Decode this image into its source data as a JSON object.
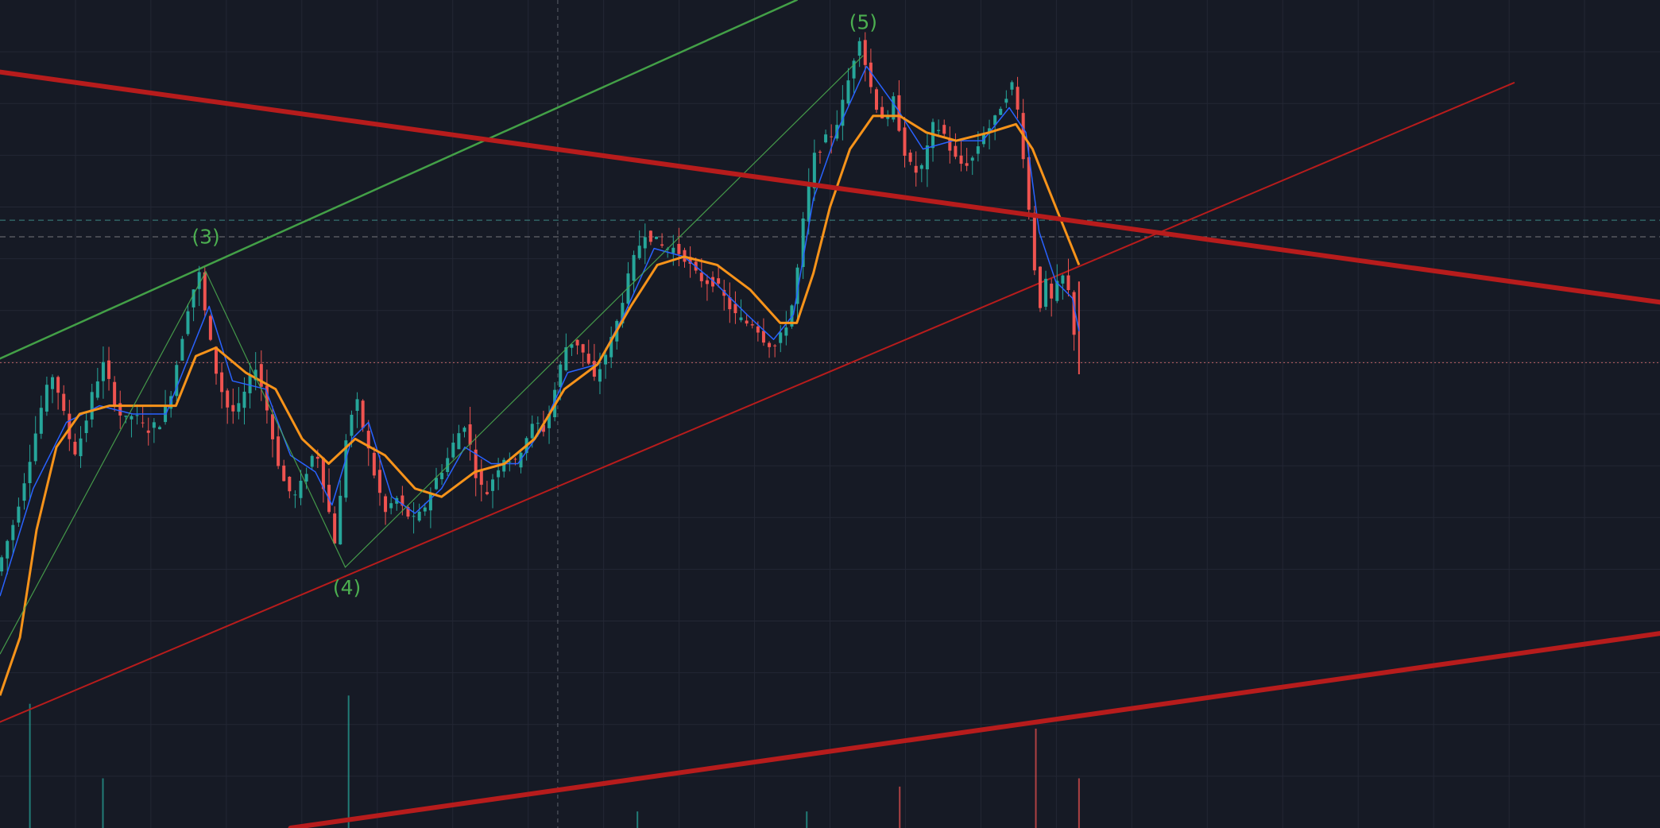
{
  "chart_data": {
    "type": "candlestick",
    "theme": {
      "background": "#161a25",
      "grid": "#232734",
      "up_color": "#26a69a",
      "down_color": "#ef5350",
      "ma_fast_color": "#2962ff",
      "ma_slow_color": "#f7931a",
      "wave_color": "#4caf50",
      "trendline_color": "#b71c1c",
      "upper_channel_color": "#43a047",
      "reference_line_teal": "#4db6ac",
      "reference_line_gray": "#9e9e9e",
      "reference_line_pink": "#e57373"
    },
    "x_range": [
      0,
      1
    ],
    "y_range": [
      0,
      1
    ],
    "price_path": [
      [
        0.0,
        0.31
      ],
      [
        0.01,
        0.37
      ],
      [
        0.02,
        0.45
      ],
      [
        0.028,
        0.52
      ],
      [
        0.034,
        0.55
      ],
      [
        0.04,
        0.5
      ],
      [
        0.046,
        0.45
      ],
      [
        0.052,
        0.48
      ],
      [
        0.058,
        0.53
      ],
      [
        0.064,
        0.56
      ],
      [
        0.07,
        0.52
      ],
      [
        0.076,
        0.49
      ],
      [
        0.082,
        0.5
      ],
      [
        0.09,
        0.48
      ],
      [
        0.098,
        0.49
      ],
      [
        0.104,
        0.52
      ],
      [
        0.11,
        0.58
      ],
      [
        0.116,
        0.64
      ],
      [
        0.122,
        0.67
      ],
      [
        0.126,
        0.61
      ],
      [
        0.132,
        0.55
      ],
      [
        0.138,
        0.51
      ],
      [
        0.144,
        0.5
      ],
      [
        0.15,
        0.53
      ],
      [
        0.156,
        0.56
      ],
      [
        0.162,
        0.51
      ],
      [
        0.168,
        0.45
      ],
      [
        0.174,
        0.41
      ],
      [
        0.18,
        0.4
      ],
      [
        0.186,
        0.43
      ],
      [
        0.192,
        0.46
      ],
      [
        0.198,
        0.4
      ],
      [
        0.204,
        0.34
      ],
      [
        0.21,
        0.47
      ],
      [
        0.216,
        0.52
      ],
      [
        0.222,
        0.47
      ],
      [
        0.228,
        0.42
      ],
      [
        0.234,
        0.38
      ],
      [
        0.24,
        0.4
      ],
      [
        0.246,
        0.38
      ],
      [
        0.252,
        0.37
      ],
      [
        0.258,
        0.39
      ],
      [
        0.264,
        0.42
      ],
      [
        0.27,
        0.44
      ],
      [
        0.276,
        0.47
      ],
      [
        0.282,
        0.49
      ],
      [
        0.288,
        0.43
      ],
      [
        0.294,
        0.4
      ],
      [
        0.3,
        0.43
      ],
      [
        0.306,
        0.45
      ],
      [
        0.312,
        0.44
      ],
      [
        0.318,
        0.47
      ],
      [
        0.324,
        0.49
      ],
      [
        0.33,
        0.48
      ],
      [
        0.336,
        0.53
      ],
      [
        0.342,
        0.58
      ],
      [
        0.348,
        0.59
      ],
      [
        0.354,
        0.57
      ],
      [
        0.36,
        0.54
      ],
      [
        0.366,
        0.57
      ],
      [
        0.372,
        0.6
      ],
      [
        0.378,
        0.65
      ],
      [
        0.384,
        0.69
      ],
      [
        0.39,
        0.72
      ],
      [
        0.396,
        0.71
      ],
      [
        0.402,
        0.7
      ],
      [
        0.408,
        0.7
      ],
      [
        0.414,
        0.69
      ],
      [
        0.42,
        0.67
      ],
      [
        0.426,
        0.66
      ],
      [
        0.432,
        0.66
      ],
      [
        0.438,
        0.64
      ],
      [
        0.444,
        0.62
      ],
      [
        0.45,
        0.61
      ],
      [
        0.456,
        0.61
      ],
      [
        0.462,
        0.59
      ],
      [
        0.468,
        0.58
      ],
      [
        0.474,
        0.6
      ],
      [
        0.48,
        0.64
      ],
      [
        0.486,
        0.74
      ],
      [
        0.492,
        0.81
      ],
      [
        0.498,
        0.83
      ],
      [
        0.504,
        0.84
      ],
      [
        0.51,
        0.88
      ],
      [
        0.516,
        0.93
      ],
      [
        0.52,
        0.96
      ],
      [
        0.524,
        0.91
      ],
      [
        0.53,
        0.87
      ],
      [
        0.536,
        0.85
      ],
      [
        0.54,
        0.88
      ],
      [
        0.546,
        0.82
      ],
      [
        0.552,
        0.79
      ],
      [
        0.558,
        0.8
      ],
      [
        0.564,
        0.85
      ],
      [
        0.57,
        0.84
      ],
      [
        0.576,
        0.81
      ],
      [
        0.582,
        0.8
      ],
      [
        0.588,
        0.81
      ],
      [
        0.594,
        0.84
      ],
      [
        0.6,
        0.85
      ],
      [
        0.606,
        0.88
      ],
      [
        0.612,
        0.9
      ],
      [
        0.616,
        0.85
      ],
      [
        0.62,
        0.78
      ],
      [
        0.624,
        0.69
      ],
      [
        0.628,
        0.63
      ],
      [
        0.632,
        0.66
      ],
      [
        0.636,
        0.63
      ],
      [
        0.64,
        0.67
      ],
      [
        0.644,
        0.66
      ],
      [
        0.648,
        0.62
      ],
      [
        0.65,
        0.56
      ]
    ],
    "ma_fast": [
      [
        0.0,
        0.28
      ],
      [
        0.02,
        0.41
      ],
      [
        0.04,
        0.49
      ],
      [
        0.06,
        0.51
      ],
      [
        0.08,
        0.5
      ],
      [
        0.1,
        0.5
      ],
      [
        0.116,
        0.58
      ],
      [
        0.126,
        0.63
      ],
      [
        0.14,
        0.54
      ],
      [
        0.16,
        0.53
      ],
      [
        0.175,
        0.45
      ],
      [
        0.19,
        0.43
      ],
      [
        0.2,
        0.39
      ],
      [
        0.212,
        0.47
      ],
      [
        0.222,
        0.49
      ],
      [
        0.236,
        0.4
      ],
      [
        0.25,
        0.38
      ],
      [
        0.266,
        0.41
      ],
      [
        0.28,
        0.46
      ],
      [
        0.296,
        0.44
      ],
      [
        0.312,
        0.44
      ],
      [
        0.326,
        0.48
      ],
      [
        0.342,
        0.55
      ],
      [
        0.36,
        0.56
      ],
      [
        0.376,
        0.62
      ],
      [
        0.394,
        0.7
      ],
      [
        0.412,
        0.69
      ],
      [
        0.43,
        0.66
      ],
      [
        0.45,
        0.62
      ],
      [
        0.466,
        0.59
      ],
      [
        0.478,
        0.62
      ],
      [
        0.49,
        0.76
      ],
      [
        0.504,
        0.84
      ],
      [
        0.522,
        0.92
      ],
      [
        0.54,
        0.87
      ],
      [
        0.556,
        0.82
      ],
      [
        0.574,
        0.83
      ],
      [
        0.592,
        0.83
      ],
      [
        0.608,
        0.87
      ],
      [
        0.618,
        0.84
      ],
      [
        0.626,
        0.72
      ],
      [
        0.636,
        0.66
      ],
      [
        0.646,
        0.64
      ],
      [
        0.65,
        0.6
      ]
    ],
    "ma_slow": [
      [
        0.0,
        0.16
      ],
      [
        0.012,
        0.23
      ],
      [
        0.022,
        0.36
      ],
      [
        0.034,
        0.46
      ],
      [
        0.048,
        0.5
      ],
      [
        0.066,
        0.51
      ],
      [
        0.088,
        0.51
      ],
      [
        0.106,
        0.51
      ],
      [
        0.118,
        0.57
      ],
      [
        0.13,
        0.58
      ],
      [
        0.148,
        0.55
      ],
      [
        0.166,
        0.53
      ],
      [
        0.182,
        0.47
      ],
      [
        0.198,
        0.44
      ],
      [
        0.214,
        0.47
      ],
      [
        0.232,
        0.45
      ],
      [
        0.25,
        0.41
      ],
      [
        0.266,
        0.4
      ],
      [
        0.286,
        0.43
      ],
      [
        0.304,
        0.44
      ],
      [
        0.322,
        0.47
      ],
      [
        0.34,
        0.53
      ],
      [
        0.36,
        0.56
      ],
      [
        0.38,
        0.63
      ],
      [
        0.396,
        0.68
      ],
      [
        0.412,
        0.69
      ],
      [
        0.432,
        0.68
      ],
      [
        0.452,
        0.65
      ],
      [
        0.47,
        0.61
      ],
      [
        0.48,
        0.61
      ],
      [
        0.49,
        0.67
      ],
      [
        0.5,
        0.75
      ],
      [
        0.512,
        0.82
      ],
      [
        0.526,
        0.86
      ],
      [
        0.542,
        0.86
      ],
      [
        0.558,
        0.84
      ],
      [
        0.576,
        0.83
      ],
      [
        0.596,
        0.84
      ],
      [
        0.612,
        0.85
      ],
      [
        0.622,
        0.82
      ],
      [
        0.634,
        0.76
      ],
      [
        0.644,
        0.71
      ],
      [
        0.65,
        0.68
      ]
    ],
    "volume_spikes": [
      [
        0.018,
        0.15,
        "up"
      ],
      [
        0.062,
        0.06,
        "up"
      ],
      [
        0.21,
        0.16,
        "up"
      ],
      [
        0.384,
        0.02,
        "up"
      ],
      [
        0.486,
        0.02,
        "up"
      ],
      [
        0.542,
        0.05,
        "down"
      ],
      [
        0.624,
        0.12,
        "down"
      ],
      [
        0.65,
        0.06,
        "down"
      ]
    ],
    "wave_path": [
      [
        0.0,
        0.21
      ],
      [
        0.124,
        0.672
      ],
      [
        0.208,
        0.315
      ],
      [
        0.52,
        0.933
      ]
    ],
    "wave_labels": [
      {
        "text": "(3)",
        "x": 0.124,
        "y": 0.706
      },
      {
        "text": "(4)",
        "x": 0.209,
        "y": 0.282
      },
      {
        "text": "(5)",
        "x": 0.52,
        "y": 0.965
      }
    ],
    "trendlines": [
      {
        "kind": "thick",
        "from": [
          0.0,
          0.913
        ],
        "to": [
          1.0,
          0.635
        ]
      },
      {
        "kind": "thin",
        "from": [
          0.0,
          0.128
        ],
        "to": [
          0.912,
          0.9
        ]
      },
      {
        "kind": "thick",
        "from": [
          0.175,
          0.0
        ],
        "to": [
          1.0,
          0.235
        ]
      },
      {
        "kind": "upper",
        "from": [
          0.0,
          0.567
        ],
        "to": [
          0.48,
          1.0
        ]
      }
    ],
    "reference_lines": [
      {
        "y": 0.734,
        "style": "teal"
      },
      {
        "y": 0.714,
        "style": "gray"
      },
      {
        "y": 0.562,
        "style": "pink"
      }
    ],
    "crosshair_x": 0.336
  }
}
